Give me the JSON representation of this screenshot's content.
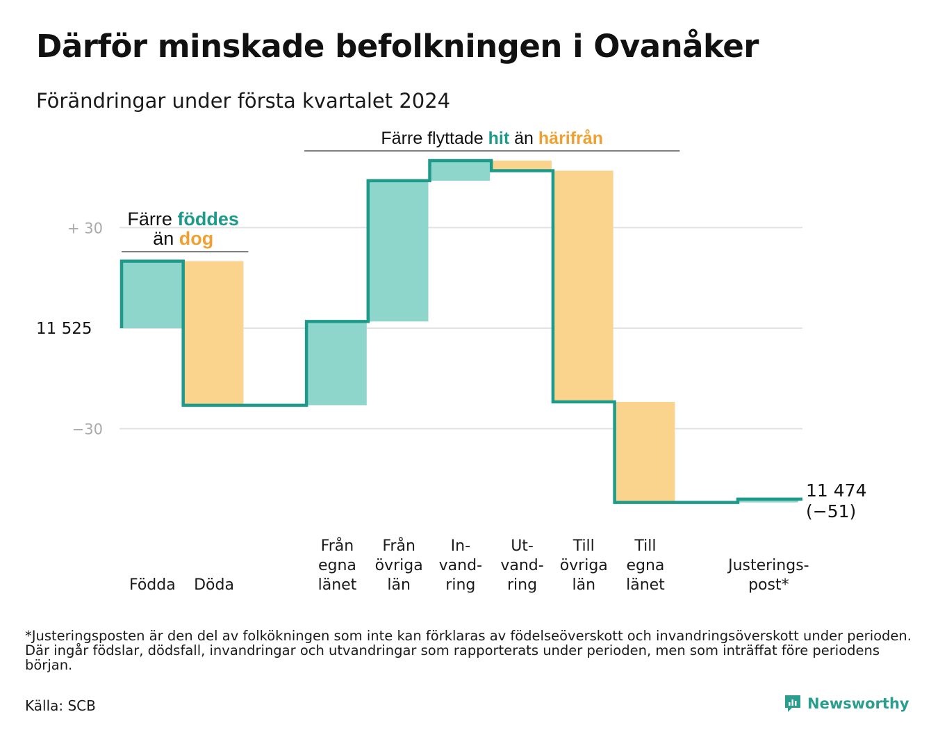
{
  "title": "Därför minskade befolkningen i Ovanåker",
  "subtitle": "Förändringar under första kvartalet 2024",
  "footnote": "*Justeringsposten är den del av folkökningen som inte kan förklaras av födelseöverskott och invandringsöverskott under perioden. Där ingår födslar, dödsfall, invandringar och utvandringar som rapporterats under perioden, men som inträffat före periodens början.",
  "source": "Källa: SCB",
  "brand": "Newsworthy",
  "colors": {
    "teal_line": "#1e9a8a",
    "teal_bar": "#8ed6cc",
    "orange_bar": "#fad38c",
    "orange_text": "#f0a030",
    "teal_text": "#1e9a8a",
    "grid": "#e2e2e2",
    "tick_grey": "#aaaaaa"
  },
  "chart_data": {
    "type": "waterfall",
    "start": 11525,
    "end_label": "11 474",
    "end_change_label": "(−51)",
    "y_ticks": [
      {
        "value": 30,
        "label": "+ 30"
      },
      {
        "value": 0,
        "label": "11  525"
      },
      {
        "value": -30,
        "label": "−30"
      }
    ],
    "ylim": [
      -56,
      53
    ],
    "steps": [
      {
        "label_lines": [
          "Födda"
        ],
        "change": 20,
        "kind": "positive"
      },
      {
        "label_lines": [
          "Döda"
        ],
        "change": -43,
        "kind": "negative"
      },
      {
        "label_lines": [],
        "change": 0,
        "kind": "gap"
      },
      {
        "label_lines": [
          "Från",
          "egna",
          "länet"
        ],
        "change": 25,
        "kind": "positive"
      },
      {
        "label_lines": [
          "Från",
          "övriga",
          "län"
        ],
        "change": 42,
        "kind": "positive"
      },
      {
        "label_lines": [
          "In-",
          "vand-",
          "ring"
        ],
        "change": 6,
        "kind": "positive"
      },
      {
        "label_lines": [
          "Ut-",
          "vand-",
          "ring"
        ],
        "change": -3,
        "kind": "negative"
      },
      {
        "label_lines": [
          "Till",
          "övriga",
          "län"
        ],
        "change": -69,
        "kind": "negative"
      },
      {
        "label_lines": [
          "Till",
          "egna",
          "länet"
        ],
        "change": -30,
        "kind": "negative"
      },
      {
        "label_lines": [],
        "change": 0,
        "kind": "gap"
      },
      {
        "label_lines": [
          "Justerings-",
          "post*"
        ],
        "change": 1,
        "kind": "positive"
      }
    ],
    "annotations": {
      "births": {
        "line1_plain": "Färre",
        "line1_teal": "föddes",
        "line2_plain": "än",
        "line2_orange": "dog"
      },
      "migration": {
        "plain1": "Färre flyttade",
        "teal": "hit",
        "plain2": "än",
        "orange": "härifrån"
      }
    }
  }
}
